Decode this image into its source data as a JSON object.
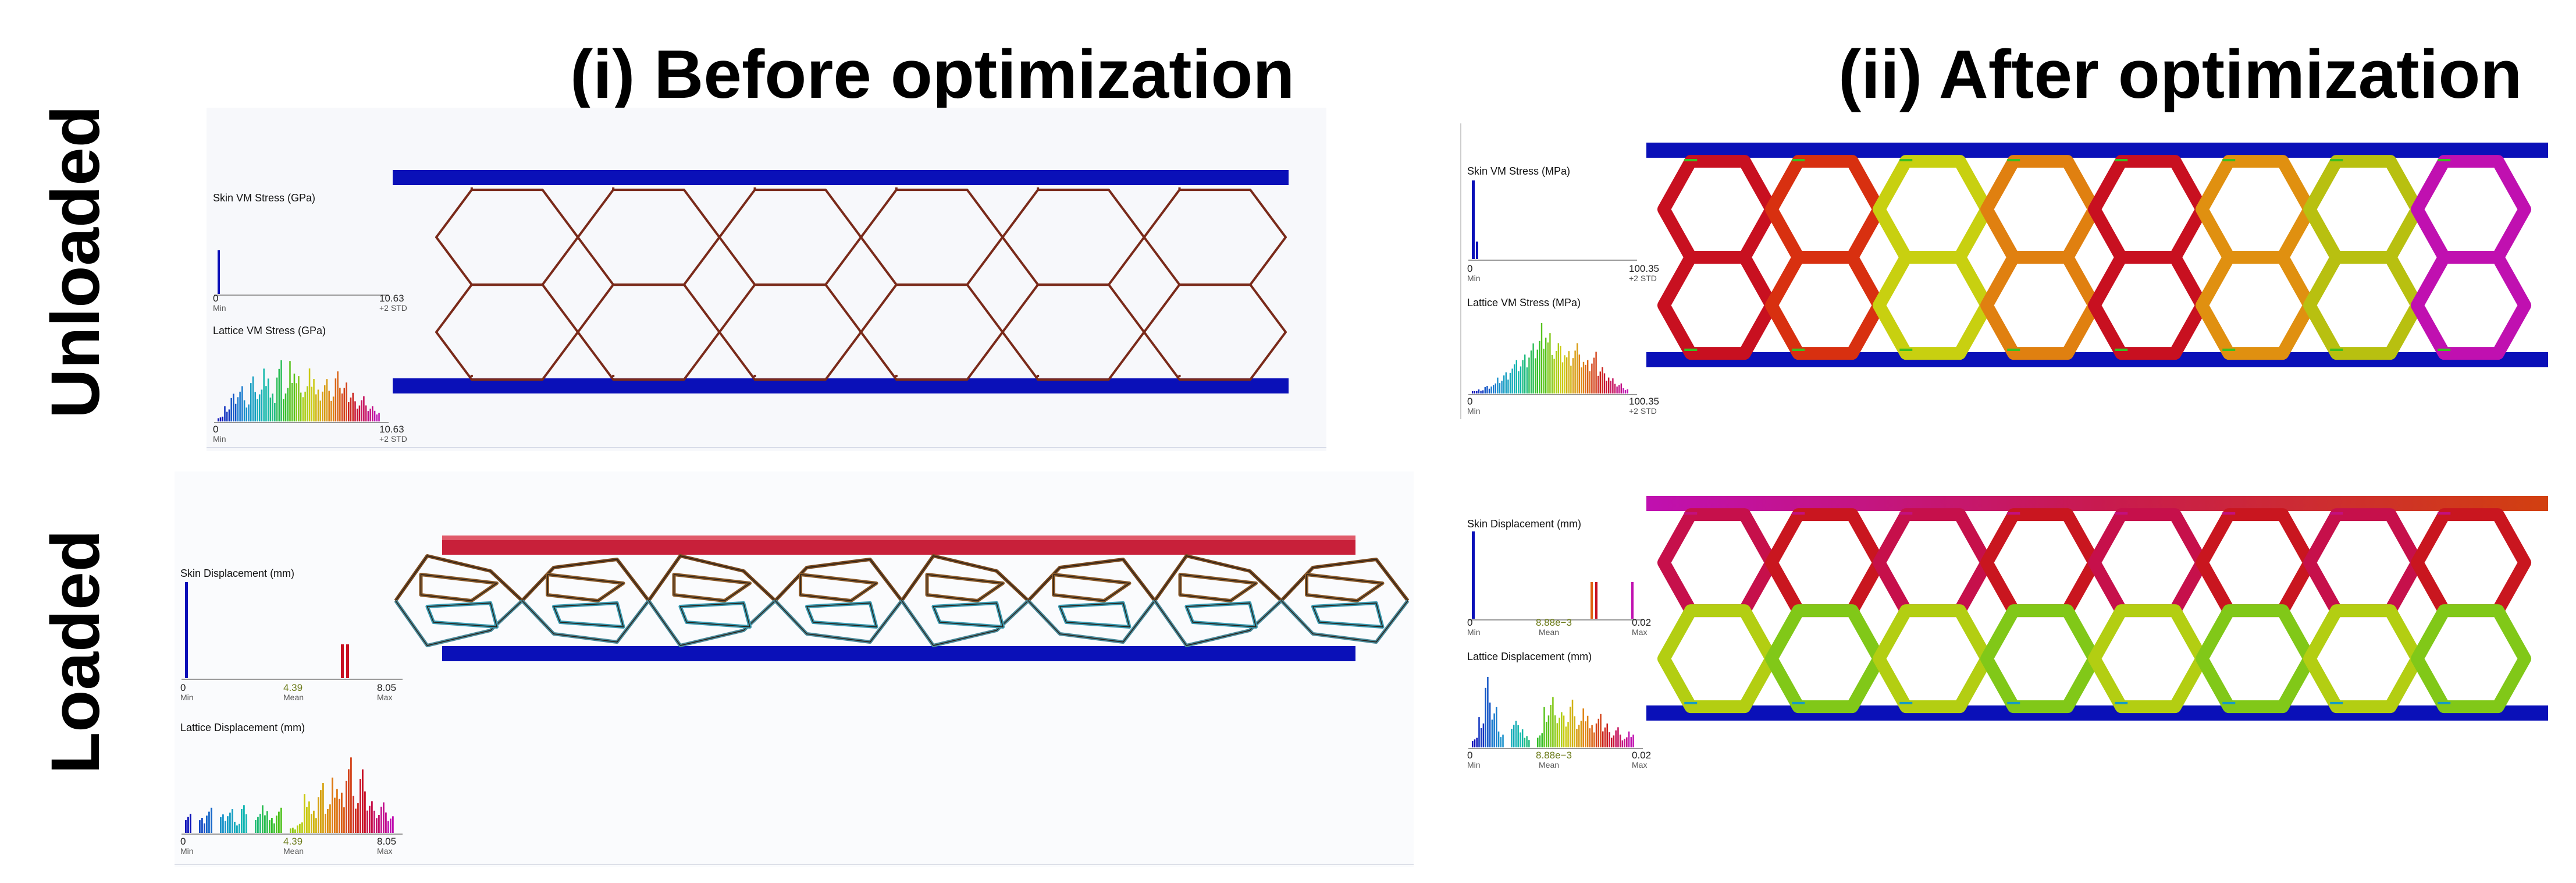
{
  "headings": {
    "before": "(i) Before optimization",
    "after": "(ii) After optimization",
    "unloaded": "Unloaded",
    "loaded": "Loaded"
  },
  "colors": {
    "skin": "#0a10b8",
    "loaded_skin_before": "#c8203a",
    "strut_before": "#7a2a1a",
    "gradient": [
      "#0a10b8",
      "#1a88d0",
      "#10b8b0",
      "#3ac020",
      "#c8d010",
      "#e08010",
      "#c81020",
      "#c010b0"
    ]
  },
  "panels": {
    "before_unloaded": {
      "skin_hist": {
        "title": "Skin VM Stress (GPa)",
        "min": "0",
        "min_sub": "Min",
        "max": "10.63",
        "max_sub": "+2 STD"
      },
      "lattice_hist": {
        "title": "Lattice VM Stress (GPa)",
        "min": "0",
        "min_sub": "Min",
        "max": "10.63",
        "max_sub": "+2 STD"
      }
    },
    "after_unloaded": {
      "skin_hist": {
        "title": "Skin VM Stress (MPa)",
        "min": "0",
        "min_sub": "Min",
        "max": "100.35",
        "max_sub": "+2 STD"
      },
      "lattice_hist": {
        "title": "Lattice VM Stress (MPa)",
        "min": "0",
        "min_sub": "Min",
        "max": "100.35",
        "max_sub": "+2 STD"
      }
    },
    "before_loaded": {
      "skin_hist": {
        "title": "Skin Displacement (mm)",
        "min": "0",
        "min_sub": "Min",
        "mean": "4.39",
        "mean_sub": "Mean",
        "max": "8.05",
        "max_sub": "Max"
      },
      "lattice_hist": {
        "title": "Lattice Displacement (mm)",
        "min": "0",
        "min_sub": "Min",
        "mean": "4.39",
        "mean_sub": "Mean",
        "max": "8.05",
        "max_sub": "Max"
      }
    },
    "after_loaded": {
      "skin_hist": {
        "title": "Skin Displacement (mm)",
        "min": "0",
        "min_sub": "Min",
        "mean": "8.88e−3",
        "mean_sub": "Mean",
        "max": "0.02",
        "max_sub": "Max"
      },
      "lattice_hist": {
        "title": "Lattice Displacement (mm)",
        "min": "0",
        "min_sub": "Min",
        "mean": "8.88e−3",
        "mean_sub": "Mean",
        "max": "0.02",
        "max_sub": "Max"
      }
    }
  }
}
